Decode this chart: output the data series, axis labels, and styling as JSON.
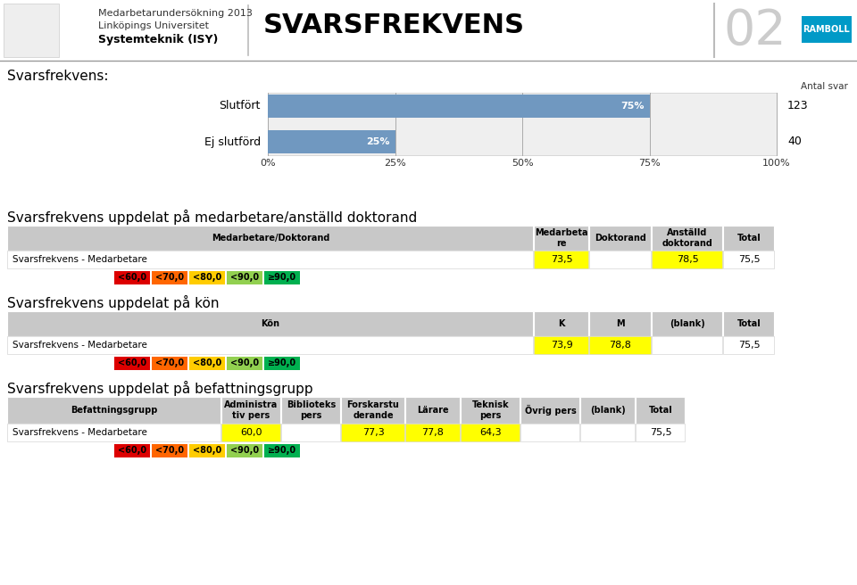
{
  "title_main": "SVARSFREKVENS",
  "header_line1": "Medarbetarundersökning 2013",
  "header_line2": "Linköpings Universitet",
  "header_line3": "Systemteknik (ISY)",
  "page_number": "02",
  "section1_title": "Svarsfrekvens:",
  "bar_labels": [
    "Slutfört",
    "Ej slutförd"
  ],
  "bar_values": [
    75,
    25
  ],
  "bar_antal": [
    "123",
    "40"
  ],
  "bar_color": "#7098c0",
  "bar_bg": "#efefef",
  "xlabel_ticks": [
    "0%",
    "25%",
    "50%",
    "75%",
    "100%"
  ],
  "xlabel_vals": [
    0,
    25,
    50,
    75,
    100
  ],
  "section2_title": "Svarsfrekvens uppdelat på medarbetare/anställd doktorand",
  "table1_header": [
    "Medarbetare/Doktorand",
    "Medarbeta\nre",
    "Doktorand",
    "Anställd\ndoktorand",
    "Total"
  ],
  "table1_row_label": "Svarsfrekvens - Medarbetare",
  "table1_values": [
    "73,5",
    "",
    "78,5",
    "75,5"
  ],
  "table1_highlight_cols": [
    0,
    2
  ],
  "section3_title": "Svarsfrekvens uppdelat på kön",
  "table2_header": [
    "Kön",
    "K",
    "M",
    "(blank)",
    "Total"
  ],
  "table2_row_label": "Svarsfrekvens - Medarbetare",
  "table2_values": [
    "73,9",
    "78,8",
    "",
    "75,5"
  ],
  "table2_highlight_cols": [
    0,
    1
  ],
  "section4_title": "Svarsfrekvens uppdelat på befattningsgrupp",
  "table3_header": [
    "Befattningsgrupp",
    "Administra\ntiv pers",
    "Biblioteks\npers",
    "Forskarstu\nderande",
    "Lärare",
    "Teknisk\npers",
    "Övrig pers",
    "(blank)",
    "Total"
  ],
  "table3_row_label": "Svarsfrekvens - Medarbetare",
  "table3_values": [
    "60,0",
    "",
    "77,3",
    "77,8",
    "64,3",
    "",
    "",
    "75,5"
  ],
  "table3_highlight_cols": [
    0,
    2,
    3,
    4
  ],
  "legend_colors": [
    "#dd0000",
    "#ff6600",
    "#ffcc00",
    "#92d050",
    "#00b050"
  ],
  "legend_labels": [
    "<60,0",
    "<70,0",
    "<80,0",
    "<90,0",
    "≥90,0"
  ],
  "table_header_bg": "#c8c8c8",
  "table_row_bg": "#ffffff",
  "highlight_yellow": "#ffff00",
  "ramboll_bg": "#009ac7"
}
